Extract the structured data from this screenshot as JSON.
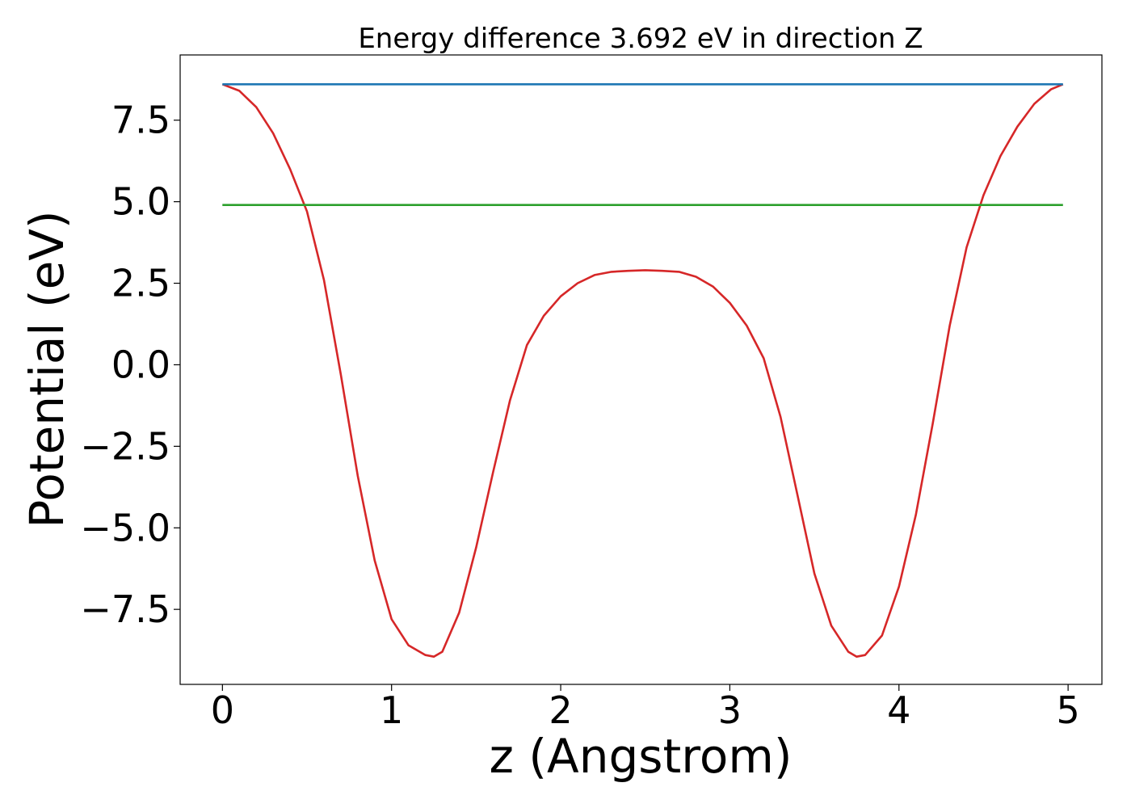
{
  "chart_data": {
    "type": "line",
    "title": "Energy difference 3.692 eV in direction Z",
    "xlabel": "z (Angstrom)",
    "ylabel": "Potential (eV)",
    "xlim": [
      -0.25,
      5.2
    ],
    "ylim": [
      -9.8,
      9.5
    ],
    "xticks": [
      0,
      1,
      2,
      3,
      4,
      5
    ],
    "yticks": [
      -7.5,
      -5.0,
      -2.5,
      0.0,
      2.5,
      5.0,
      7.5
    ],
    "xtick_labels": [
      "0",
      "1",
      "2",
      "3",
      "4",
      "5"
    ],
    "ytick_labels": [
      "−7.5",
      "−5.0",
      "−2.5",
      "0.0",
      "2.5",
      "5.0",
      "7.5"
    ],
    "grid": false,
    "series": [
      {
        "color": "#d62728",
        "x": [
          0,
          0.1,
          0.2,
          0.3,
          0.4,
          0.5,
          0.6,
          0.7,
          0.8,
          0.9,
          1.0,
          1.1,
          1.2,
          1.25,
          1.3,
          1.4,
          1.5,
          1.6,
          1.7,
          1.8,
          1.9,
          2.0,
          2.1,
          2.2,
          2.3,
          2.4,
          2.5,
          2.6,
          2.7,
          2.8,
          2.9,
          3.0,
          3.1,
          3.2,
          3.3,
          3.4,
          3.5,
          3.6,
          3.7,
          3.75,
          3.8,
          3.9,
          4.0,
          4.1,
          4.2,
          4.3,
          4.4,
          4.5,
          4.6,
          4.7,
          4.8,
          4.9,
          4.97
        ],
        "y": [
          8.6,
          8.4,
          7.9,
          7.1,
          6.0,
          4.7,
          2.6,
          -0.3,
          -3.4,
          -6.0,
          -7.8,
          -8.6,
          -8.9,
          -8.95,
          -8.8,
          -7.6,
          -5.6,
          -3.3,
          -1.1,
          0.6,
          1.5,
          2.1,
          2.5,
          2.75,
          2.85,
          2.88,
          2.9,
          2.88,
          2.85,
          2.7,
          2.4,
          1.9,
          1.2,
          0.2,
          -1.6,
          -4.0,
          -6.4,
          -8.0,
          -8.8,
          -8.95,
          -8.9,
          -8.3,
          -6.8,
          -4.6,
          -1.8,
          1.2,
          3.6,
          5.2,
          6.4,
          7.3,
          8.0,
          8.45,
          8.6
        ]
      },
      {
        "color": "#1f77b4",
        "x": [
          0,
          4.97
        ],
        "y": [
          8.6,
          8.6
        ]
      },
      {
        "color": "#2ca02c",
        "x": [
          0,
          4.97
        ],
        "y": [
          4.9,
          4.9
        ]
      }
    ]
  }
}
